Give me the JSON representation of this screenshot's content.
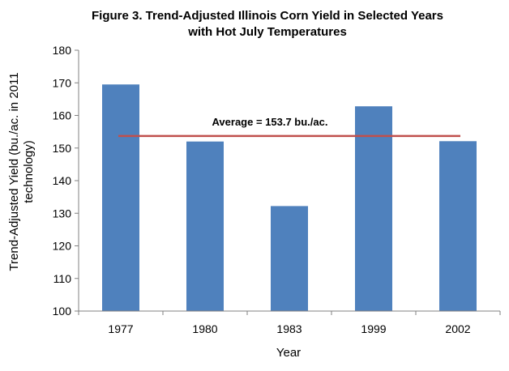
{
  "chart_data": {
    "type": "bar",
    "title_lines": [
      "Figure 3. Trend-Adjusted Illinois Corn Yield in Selected Years",
      "with Hot July Temperatures"
    ],
    "xlabel": "Year",
    "ylabel_lines": [
      "Trend-Adjusted Yield (bu./ac. in 2011",
      "technology)"
    ],
    "categories": [
      "1977",
      "1980",
      "1983",
      "1999",
      "2002"
    ],
    "values": [
      169.5,
      152.0,
      132.2,
      162.8,
      152.1
    ],
    "ylim": [
      100,
      180
    ],
    "yticks": [
      100,
      110,
      120,
      130,
      140,
      150,
      160,
      170,
      180
    ],
    "bar_color": "#4f81bd",
    "average": {
      "value": 153.7,
      "label": "Average = 153.7 bu./ac.",
      "color": "#c0504d"
    },
    "grid": false,
    "legend": "none"
  }
}
